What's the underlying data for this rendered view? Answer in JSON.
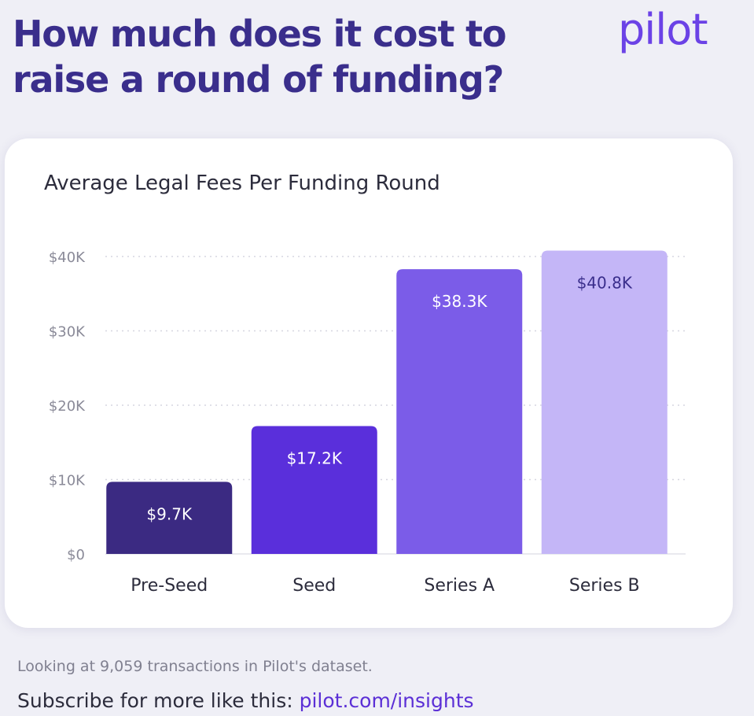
{
  "header": {
    "title": "How much does it cost to raise a round of funding?",
    "logo_text": "pilot"
  },
  "footer": {
    "note": "Looking at 9,059 transactions in Pilot's dataset.",
    "subscribe_prefix": "Subscribe for more like this:",
    "subscribe_link": "pilot.com/insights"
  },
  "colors": {
    "page_background": "#efeff6",
    "headline": "#3a2e8c",
    "brand": "#6b42e6",
    "link": "#5b2fd6"
  },
  "chart_data": {
    "type": "bar",
    "title": "Average Legal Fees Per Funding Round",
    "xlabel": "",
    "ylabel": "",
    "categories": [
      "Pre-Seed",
      "Seed",
      "Series A",
      "Series B"
    ],
    "values": [
      9.7,
      17.2,
      38.3,
      40.8
    ],
    "value_labels": [
      "$9.7K",
      "$17.2K",
      "$38.3K",
      "$40.8K"
    ],
    "bar_colors": [
      "#3b2a82",
      "#5a2fdb",
      "#7b5ce8",
      "#c4b6f7"
    ],
    "value_label_colors": [
      "#ffffff",
      "#ffffff",
      "#ffffff",
      "#3a2e8c"
    ],
    "ylim": [
      0,
      40
    ],
    "yticks": [
      0,
      10,
      20,
      30,
      40
    ],
    "ytick_labels": [
      "$0",
      "$10K",
      "$20K",
      "$30K",
      "$40K"
    ],
    "grid": true,
    "grid_style": "dotted",
    "legend": "none"
  }
}
